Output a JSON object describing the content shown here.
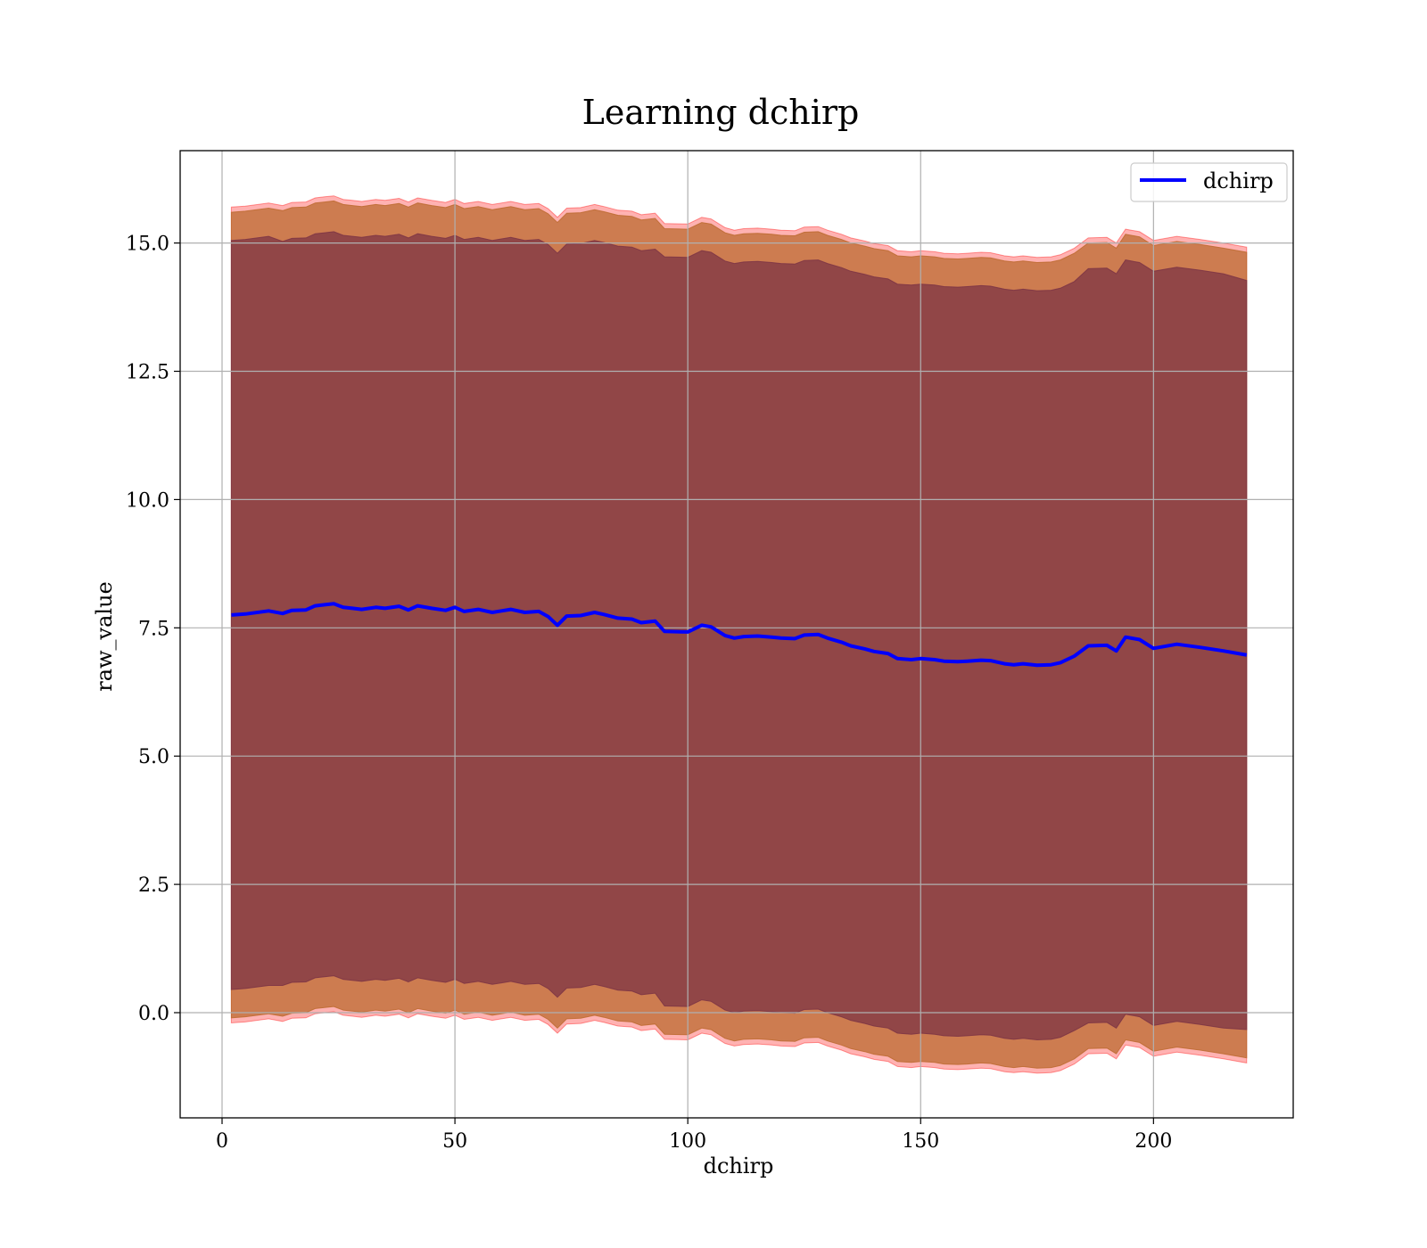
{
  "chart_data": {
    "type": "line",
    "title": "Learning dchirp",
    "xlabel": "dchirp",
    "ylabel": "raw_value",
    "xlim": [
      -9,
      230
    ],
    "ylim": [
      -2.05,
      16.8
    ],
    "xticks": [
      0,
      50,
      100,
      150,
      200
    ],
    "xtick_labels": [
      "0",
      "50",
      "100",
      "150",
      "200"
    ],
    "yticks": [
      0.0,
      2.5,
      5.0,
      7.5,
      10.0,
      12.5,
      15.0
    ],
    "ytick_labels": [
      "0.0",
      "2.5",
      "5.0",
      "7.5",
      "10.0",
      "12.5",
      "15.0"
    ],
    "grid": true,
    "legend": {
      "location": "upper right",
      "entries": [
        "dchirp"
      ]
    },
    "colors": {
      "line": "#0000ff",
      "band_outer": "#ff0000",
      "band_middle": "#bc6a2f",
      "band_inner": "#7a3244"
    },
    "series": [
      {
        "name": "dchirp",
        "x": [
          2,
          5,
          10,
          13,
          15,
          18,
          20,
          22,
          24,
          26,
          28,
          30,
          33,
          35,
          38,
          40,
          42,
          45,
          48,
          50,
          52,
          55,
          58,
          60,
          62,
          65,
          68,
          70,
          72,
          74,
          77,
          80,
          82,
          85,
          88,
          90,
          93,
          95,
          100,
          103,
          105,
          108,
          110,
          112,
          115,
          118,
          120,
          123,
          125,
          128,
          130,
          133,
          135,
          138,
          140,
          143,
          145,
          148,
          150,
          153,
          155,
          158,
          160,
          163,
          165,
          168,
          170,
          172,
          175,
          178,
          180,
          183,
          186,
          190,
          192,
          194,
          197,
          200,
          205,
          210,
          215,
          220
        ],
        "y": [
          7.75,
          7.77,
          7.83,
          7.78,
          7.84,
          7.85,
          7.93,
          7.95,
          7.97,
          7.9,
          7.88,
          7.86,
          7.9,
          7.88,
          7.92,
          7.85,
          7.93,
          7.88,
          7.84,
          7.9,
          7.82,
          7.86,
          7.8,
          7.83,
          7.86,
          7.8,
          7.82,
          7.72,
          7.55,
          7.73,
          7.74,
          7.8,
          7.76,
          7.69,
          7.67,
          7.6,
          7.63,
          7.43,
          7.42,
          7.55,
          7.52,
          7.35,
          7.3,
          7.33,
          7.34,
          7.32,
          7.3,
          7.29,
          7.36,
          7.37,
          7.3,
          7.22,
          7.15,
          7.09,
          7.04,
          7.0,
          6.9,
          6.88,
          6.9,
          6.88,
          6.85,
          6.84,
          6.85,
          6.87,
          6.86,
          6.8,
          6.78,
          6.8,
          6.77,
          6.78,
          6.82,
          6.95,
          7.15,
          7.16,
          7.05,
          7.32,
          7.27,
          7.1,
          7.18,
          7.12,
          7.05,
          6.97
        ],
        "band_inner_halfwidth": [
          7.3,
          7.3,
          7.3,
          7.25,
          7.25,
          7.25,
          7.25,
          7.25,
          7.25,
          7.25,
          7.25,
          7.25,
          7.25,
          7.25,
          7.25,
          7.25,
          7.25,
          7.25,
          7.25,
          7.25,
          7.25,
          7.25,
          7.25,
          7.25,
          7.25,
          7.25,
          7.25,
          7.25,
          7.25,
          7.25,
          7.25,
          7.25,
          7.25,
          7.25,
          7.25,
          7.25,
          7.25,
          7.3,
          7.3,
          7.3,
          7.3,
          7.3,
          7.3,
          7.3,
          7.3,
          7.3,
          7.3,
          7.3,
          7.3,
          7.3,
          7.3,
          7.3,
          7.3,
          7.3,
          7.3,
          7.3,
          7.3,
          7.3,
          7.3,
          7.3,
          7.3,
          7.3,
          7.3,
          7.3,
          7.3,
          7.3,
          7.3,
          7.3,
          7.3,
          7.3,
          7.3,
          7.3,
          7.35,
          7.35,
          7.35,
          7.35,
          7.35,
          7.35,
          7.35,
          7.35,
          7.35,
          7.3
        ],
        "band_middle_halfwidth": [
          7.85,
          7.85,
          7.85,
          7.85,
          7.85,
          7.85,
          7.85,
          7.85,
          7.85,
          7.85,
          7.85,
          7.85,
          7.85,
          7.85,
          7.85,
          7.85,
          7.85,
          7.85,
          7.85,
          7.85,
          7.85,
          7.85,
          7.85,
          7.85,
          7.85,
          7.85,
          7.85,
          7.85,
          7.85,
          7.85,
          7.85,
          7.85,
          7.85,
          7.85,
          7.85,
          7.85,
          7.85,
          7.85,
          7.85,
          7.85,
          7.85,
          7.85,
          7.85,
          7.85,
          7.85,
          7.85,
          7.85,
          7.85,
          7.85,
          7.85,
          7.85,
          7.85,
          7.85,
          7.85,
          7.85,
          7.85,
          7.85,
          7.85,
          7.85,
          7.85,
          7.85,
          7.85,
          7.85,
          7.85,
          7.85,
          7.85,
          7.85,
          7.85,
          7.85,
          7.85,
          7.85,
          7.85,
          7.85,
          7.85,
          7.85,
          7.85,
          7.85,
          7.85,
          7.85,
          7.85,
          7.85,
          7.85
        ],
        "band_outer_halfwidth": [
          7.95,
          7.95,
          7.95,
          7.95,
          7.95,
          7.95,
          7.95,
          7.95,
          7.95,
          7.95,
          7.95,
          7.95,
          7.95,
          7.95,
          7.95,
          7.95,
          7.95,
          7.95,
          7.95,
          7.95,
          7.95,
          7.95,
          7.95,
          7.95,
          7.95,
          7.95,
          7.95,
          7.95,
          7.95,
          7.95,
          7.95,
          7.95,
          7.95,
          7.95,
          7.95,
          7.95,
          7.95,
          7.95,
          7.95,
          7.95,
          7.95,
          7.95,
          7.95,
          7.95,
          7.95,
          7.95,
          7.95,
          7.95,
          7.95,
          7.95,
          7.95,
          7.95,
          7.95,
          7.95,
          7.95,
          7.95,
          7.95,
          7.95,
          7.95,
          7.95,
          7.95,
          7.95,
          7.95,
          7.95,
          7.95,
          7.95,
          7.95,
          7.95,
          7.95,
          7.95,
          7.95,
          7.95,
          7.95,
          7.95,
          7.95,
          7.95,
          7.95,
          7.95,
          7.95,
          7.95,
          7.95,
          7.95
        ]
      }
    ]
  }
}
